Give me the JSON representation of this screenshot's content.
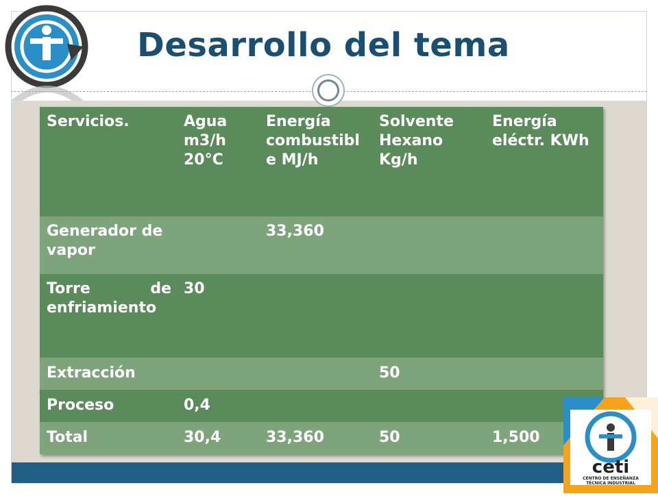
{
  "slide": {
    "title": "Desarrollo del tema"
  },
  "logo": {
    "text": "ceti",
    "subtitle_line1": "CENTRO DE ENSEÑANZA",
    "subtitle_line2": "TÉCNICA INDUSTRIAL"
  },
  "table": {
    "headers": [
      "Servicios.",
      "Agua m3/h 20°C",
      "Energía combustible MJ/h",
      "Solvente Hexano Kg/h",
      "Energía eléctr. KWh"
    ],
    "rows": [
      [
        "Generador de vapor",
        "",
        "33,360",
        "",
        ""
      ],
      [
        "Torre de enfriamiento",
        "30",
        "",
        "",
        ""
      ],
      [
        "Extracción",
        "",
        "",
        "50",
        ""
      ],
      [
        "Proceso",
        "0,4",
        "",
        "",
        ""
      ],
      [
        "Total",
        "30,4",
        "33,360",
        "50",
        "1,500"
      ]
    ]
  }
}
